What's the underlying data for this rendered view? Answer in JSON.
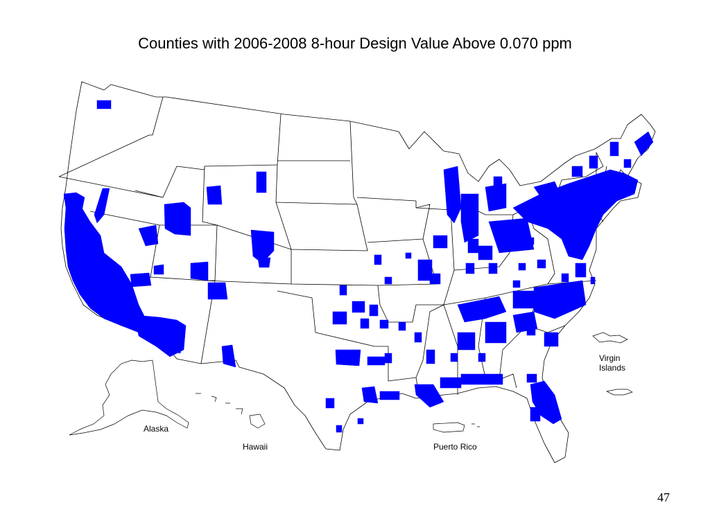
{
  "slide": {
    "title": "Counties with 2006-2008 8-hour Design Value Above 0.070 ppm",
    "page_number": "47"
  },
  "map": {
    "highlight_color": "#0000ff",
    "border_color": "#000000",
    "inset_labels": {
      "alaska": "Alaska",
      "hawaii": "Hawaii",
      "puerto_rico": "Puerto Rico",
      "virgin_islands_line1": "Virgin",
      "virgin_islands_line2": "Islands"
    }
  }
}
